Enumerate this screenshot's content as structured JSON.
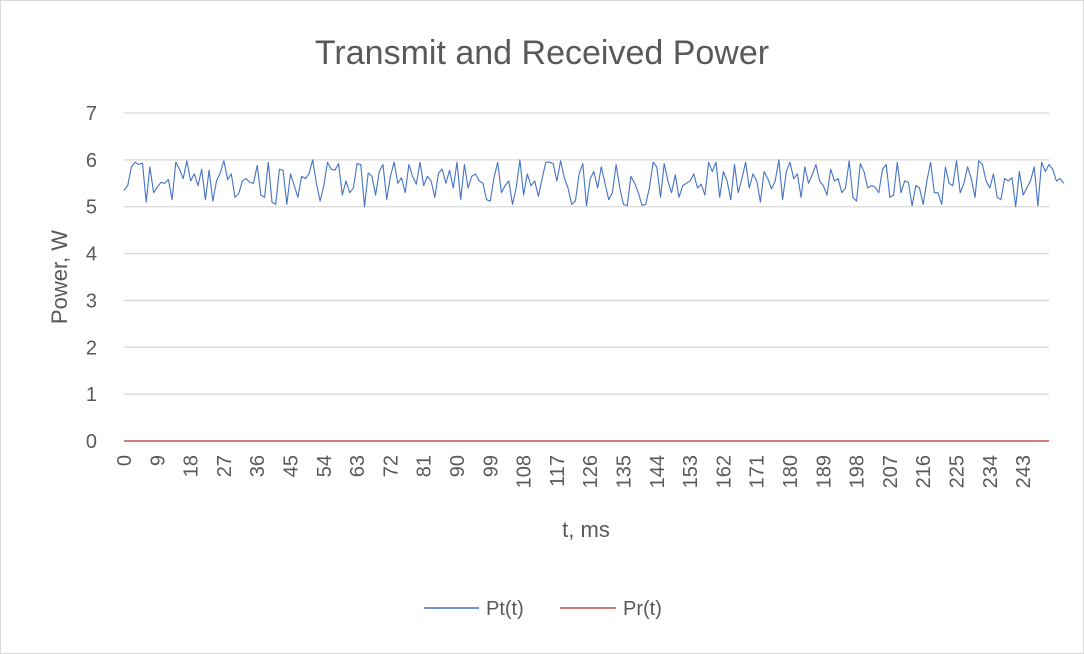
{
  "chart_data": {
    "type": "line",
    "title": "Transmit and Received Power",
    "xlabel": "t, ms",
    "ylabel": "Power, W",
    "ylim": [
      0,
      7
    ],
    "yticks": [
      "0",
      "1",
      "2",
      "3",
      "4",
      "5",
      "6",
      "7"
    ],
    "xlim": [
      0,
      250
    ],
    "xticks": [
      "0",
      "9",
      "18",
      "27",
      "36",
      "45",
      "54",
      "63",
      "72",
      "81",
      "90",
      "99",
      "108",
      "117",
      "126",
      "135",
      "144",
      "153",
      "162",
      "171",
      "180",
      "189",
      "198",
      "207",
      "216",
      "225",
      "234",
      "243"
    ],
    "grid": true,
    "legend_position": "bottom",
    "series": [
      {
        "name": "Pt(t)",
        "color": "#4472c4",
        "x_start": 0,
        "x_step": 1,
        "values": [
          5.35,
          5.45,
          5.85,
          5.95,
          5.9,
          5.93,
          5.1,
          5.85,
          5.3,
          5.42,
          5.52,
          5.5,
          5.58,
          5.15,
          5.95,
          5.8,
          5.6,
          5.98,
          5.55,
          5.7,
          5.45,
          5.8,
          5.15,
          5.78,
          5.12,
          5.55,
          5.72,
          5.98,
          5.58,
          5.7,
          5.2,
          5.28,
          5.55,
          5.6,
          5.52,
          5.5,
          5.88,
          5.25,
          5.2,
          5.95,
          5.1,
          5.05,
          5.8,
          5.78,
          5.05,
          5.7,
          5.45,
          5.2,
          5.65,
          5.6,
          5.7,
          6.0,
          5.5,
          5.12,
          5.45,
          5.95,
          5.8,
          5.78,
          5.92,
          5.25,
          5.55,
          5.3,
          5.4,
          5.92,
          5.9,
          5.0,
          5.72,
          5.65,
          5.25,
          5.75,
          5.9,
          5.15,
          5.65,
          5.95,
          5.5,
          5.62,
          5.3,
          5.9,
          5.65,
          5.48,
          5.95,
          5.45,
          5.65,
          5.55,
          5.2,
          5.72,
          5.8,
          5.5,
          5.78,
          5.4,
          5.95,
          5.15,
          5.9,
          5.4,
          5.65,
          5.7,
          5.55,
          5.5,
          5.15,
          5.12,
          5.62,
          5.95,
          5.3,
          5.45,
          5.55,
          5.05,
          5.4,
          6.0,
          5.25,
          5.7,
          5.45,
          5.55,
          5.22,
          5.6,
          5.95,
          5.95,
          5.92,
          5.55,
          5.98,
          5.62,
          5.4,
          5.05,
          5.12,
          5.7,
          5.92,
          5.02,
          5.6,
          5.75,
          5.4,
          5.85,
          5.5,
          5.15,
          5.3,
          5.9,
          5.4,
          5.05,
          5.02,
          5.65,
          5.5,
          5.3,
          5.03,
          5.05,
          5.4,
          5.95,
          5.85,
          5.2,
          5.92,
          5.55,
          5.3,
          5.68,
          5.2,
          5.45,
          5.5,
          5.55,
          5.7,
          5.4,
          5.48,
          5.25,
          5.95,
          5.75,
          5.95,
          5.2,
          5.75,
          5.55,
          5.15,
          5.9,
          5.3,
          5.6,
          5.95,
          5.4,
          5.7,
          5.55,
          5.1,
          5.75,
          5.6,
          5.38,
          5.55,
          6.0,
          5.15,
          5.75,
          5.95,
          5.6,
          5.7,
          5.2,
          5.85,
          5.5,
          5.68,
          5.9,
          5.55,
          5.45,
          5.25,
          5.8,
          5.55,
          5.6,
          5.3,
          5.4,
          5.98,
          5.2,
          5.12,
          5.92,
          5.75,
          5.4,
          5.45,
          5.42,
          5.3,
          5.8,
          5.9,
          5.2,
          5.25,
          5.95,
          5.3,
          5.55,
          5.52,
          5.02,
          5.45,
          5.4,
          5.05,
          5.55,
          5.95,
          5.3,
          5.3,
          5.05,
          5.85,
          5.5,
          5.45,
          5.98,
          5.3,
          5.5,
          5.85,
          5.6,
          5.2,
          5.98,
          5.9,
          5.55,
          5.4,
          5.7,
          5.2,
          5.15,
          5.6,
          5.55,
          5.62,
          5.0,
          5.75,
          5.25,
          5.4,
          5.55,
          5.85,
          5.02,
          5.95,
          5.75,
          5.9,
          5.8,
          5.55,
          5.6,
          5.5
        ]
      },
      {
        "name": "Pr(t)",
        "color": "#c0504d",
        "x_start": 0,
        "x_step": 1,
        "values_constant": 0
      }
    ]
  }
}
